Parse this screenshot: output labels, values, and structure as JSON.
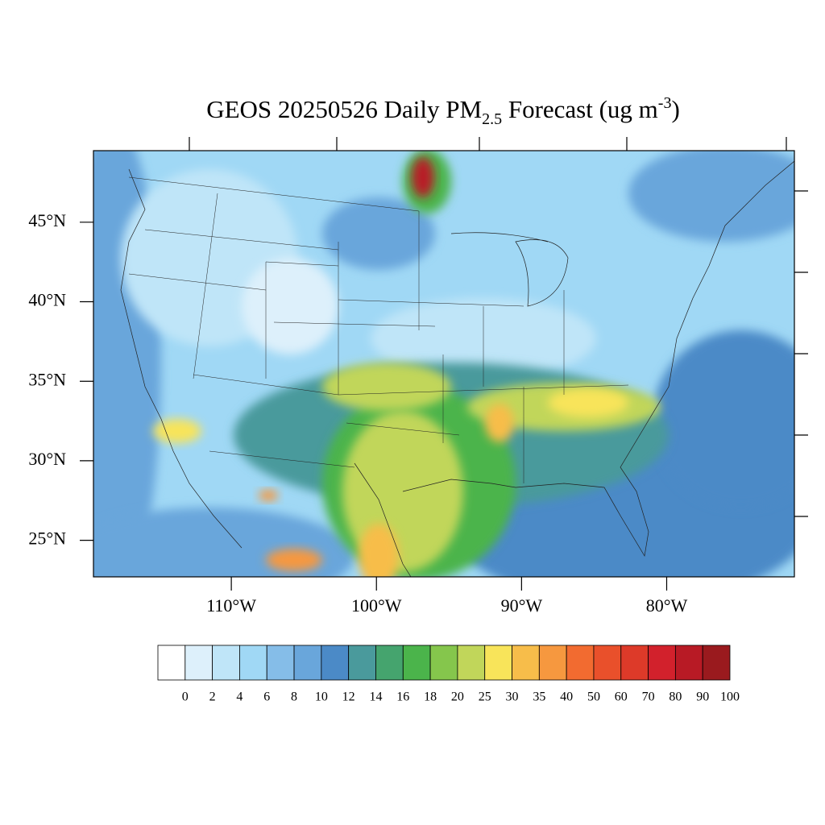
{
  "chart_data": {
    "type": "map",
    "title": {
      "main": "GEOS 20250526 Daily PM",
      "sub": "2.5",
      "rest": " Forecast (ug m",
      "sup": "-3",
      "end": ")"
    },
    "xlim": [
      -119.5,
      -71.2
    ],
    "ylim": [
      22.7,
      49.5
    ],
    "xticks": [
      {
        "value": -110,
        "label": "110°W"
      },
      {
        "value": -100,
        "label": "100°W"
      },
      {
        "value": -90,
        "label": "90°W"
      },
      {
        "value": -80,
        "label": "80°W"
      }
    ],
    "yticks": [
      {
        "value": 25,
        "label": "25°N"
      },
      {
        "value": 30,
        "label": "30°N"
      },
      {
        "value": 35,
        "label": "35°N"
      },
      {
        "value": 40,
        "label": "40°N"
      },
      {
        "value": 45,
        "label": "45°N"
      }
    ],
    "colorbar": {
      "levels": [
        0,
        2,
        4,
        6,
        8,
        10,
        12,
        14,
        16,
        18,
        20,
        25,
        30,
        35,
        40,
        50,
        60,
        70,
        80,
        90,
        100
      ],
      "colors": [
        "#ffffff",
        "#ddf0fb",
        "#bfe5f8",
        "#a0d8f5",
        "#85bde8",
        "#69a6db",
        "#4b8ac7",
        "#4a9a9c",
        "#45a46e",
        "#4bb44b",
        "#85c64c",
        "#c1d65a",
        "#f8e45a",
        "#f7bd4a",
        "#f6983f",
        "#f26b30",
        "#e9502b",
        "#dd3a29",
        "#d2212c",
        "#b81a25",
        "#9a1a1e"
      ]
    }
  }
}
